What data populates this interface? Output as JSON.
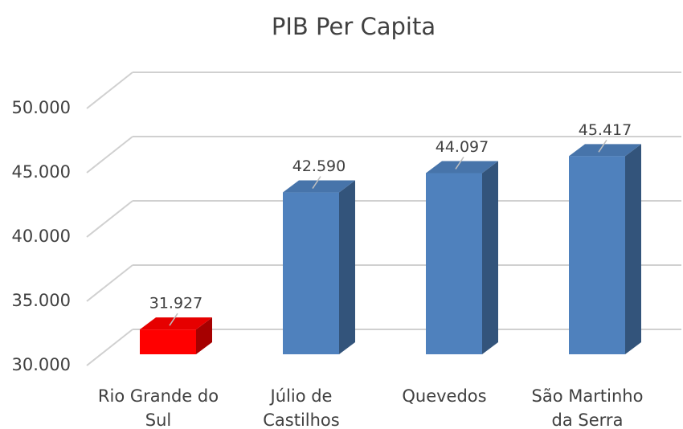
{
  "chart_data": {
    "type": "bar3d",
    "title": "PIB Per Capita",
    "categories": [
      "Rio Grande do Sul",
      "Júlio de Castilhos",
      "Quevedos",
      "São Martinho da Serra"
    ],
    "values": [
      31927,
      42590,
      44097,
      45417
    ],
    "value_labels": [
      "31.927",
      "42.590",
      "44.097",
      "45.417"
    ],
    "colors": [
      "#ff0000",
      "#4f81bd",
      "#4f81bd",
      "#4f81bd"
    ],
    "ylim": [
      30000,
      50000
    ],
    "yticks": [
      {
        "value": 30000,
        "label": "30.000"
      },
      {
        "value": 35000,
        "label": "35.000"
      },
      {
        "value": 40000,
        "label": "40.000"
      },
      {
        "value": 45000,
        "label": "45.000"
      },
      {
        "value": 50000,
        "label": "50.000"
      }
    ],
    "grid": true
  }
}
